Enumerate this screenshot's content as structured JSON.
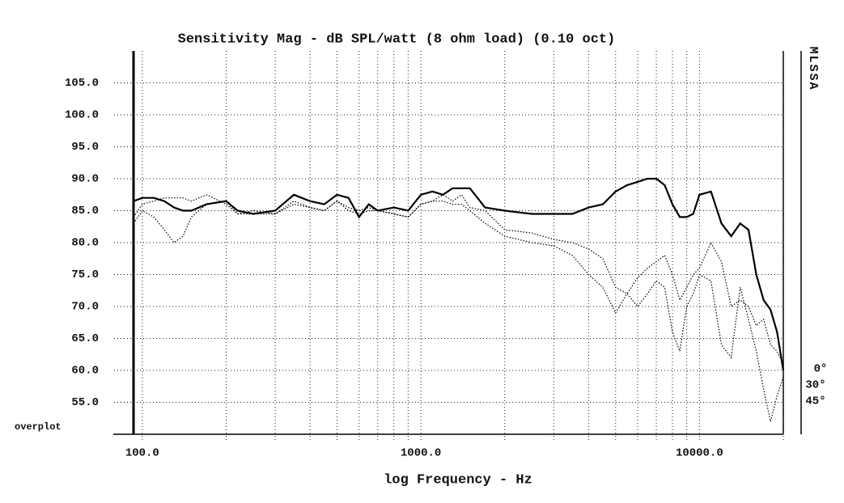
{
  "chart_data": {
    "type": "line",
    "title": "Sensitivity Mag - dB SPL/watt (8 ohm load) (0.10 oct)",
    "xlabel": "log Frequency - Hz",
    "side_label": "MLSSA",
    "annotation": "overplot",
    "xscale": "log",
    "grid": true,
    "legend": "right",
    "xlim": [
      93,
      20000
    ],
    "xticks": [
      {
        "value": 100,
        "label": "100.0"
      },
      {
        "value": 1000,
        "label": "1000.0"
      },
      {
        "value": 10000,
        "label": "10000.0"
      }
    ],
    "xminor_ticks": [
      200,
      300,
      400,
      500,
      600,
      700,
      800,
      900,
      2000,
      3000,
      4000,
      5000,
      6000,
      7000,
      8000,
      9000,
      20000
    ],
    "ylim": [
      50,
      110
    ],
    "yticks": [
      {
        "value": 55,
        "label": "55.0"
      },
      {
        "value": 60,
        "label": "60.0"
      },
      {
        "value": 65,
        "label": "65.0"
      },
      {
        "value": 70,
        "label": "70.0"
      },
      {
        "value": 75,
        "label": "75.0"
      },
      {
        "value": 80,
        "label": "80.0"
      },
      {
        "value": 85,
        "label": "85.0"
      },
      {
        "value": 90,
        "label": "90.0"
      },
      {
        "value": 95,
        "label": "95.0"
      },
      {
        "value": 100,
        "label": "100.0"
      },
      {
        "value": 105,
        "label": "105.0"
      }
    ],
    "x": [
      93,
      100,
      110,
      120,
      130,
      140,
      150,
      170,
      200,
      220,
      250,
      300,
      350,
      400,
      450,
      500,
      550,
      600,
      650,
      700,
      800,
      900,
      1000,
      1100,
      1200,
      1300,
      1400,
      1500,
      1700,
      2000,
      2500,
      3000,
      3500,
      4000,
      4500,
      5000,
      5500,
      6000,
      6500,
      7000,
      7500,
      8000,
      8500,
      9000,
      9500,
      10000,
      11000,
      12000,
      13000,
      14000,
      15000,
      16000,
      17000,
      18000,
      19000,
      20000
    ],
    "series": [
      {
        "name": "0°",
        "color": "#000000",
        "style": "solid",
        "values": [
          86.5,
          87,
          87,
          86.5,
          85.5,
          85,
          85,
          86,
          86.5,
          85,
          84.5,
          85,
          87.5,
          86.5,
          86,
          87.5,
          87,
          84,
          86,
          85,
          85.5,
          85,
          87.5,
          88,
          87.5,
          88.5,
          88.5,
          88.5,
          85.5,
          85,
          84.5,
          84.5,
          84.5,
          85.5,
          86,
          88,
          89,
          89.5,
          90,
          90,
          89,
          86,
          84,
          84,
          84.5,
          87.5,
          88,
          83,
          81,
          83,
          82,
          75,
          71,
          69.5,
          66,
          60
        ]
      },
      {
        "name": "30°",
        "color": "#000000",
        "style": "dotted",
        "values": [
          84,
          86,
          86.5,
          87,
          87,
          87,
          86.5,
          87.5,
          86,
          84.5,
          85,
          84.5,
          86.5,
          85.5,
          85,
          86.5,
          85.5,
          85,
          85.5,
          85,
          84.5,
          84,
          86,
          86.5,
          87.5,
          86.5,
          87.5,
          85.5,
          85,
          82,
          81.5,
          80.5,
          80,
          79,
          77.5,
          73,
          72,
          74.5,
          76,
          77,
          78,
          75,
          71,
          73,
          75,
          76,
          80,
          77,
          70,
          71,
          70,
          67,
          68,
          64,
          63,
          61
        ]
      },
      {
        "name": "45°",
        "color": "#000000",
        "style": "dotted",
        "values": [
          83,
          85,
          84,
          82,
          80,
          81,
          84,
          86,
          86.5,
          84.5,
          84.5,
          84.5,
          86,
          85.5,
          85,
          86.5,
          85,
          84.5,
          85,
          85,
          84.5,
          84,
          86,
          86.5,
          86.5,
          86,
          86,
          85,
          83,
          81,
          80,
          79.5,
          78,
          75,
          73,
          69,
          72,
          70,
          72,
          74,
          73,
          66,
          63,
          70,
          72,
          75,
          74,
          64,
          62,
          73,
          68,
          63,
          57,
          52,
          56,
          59
        ]
      }
    ]
  }
}
